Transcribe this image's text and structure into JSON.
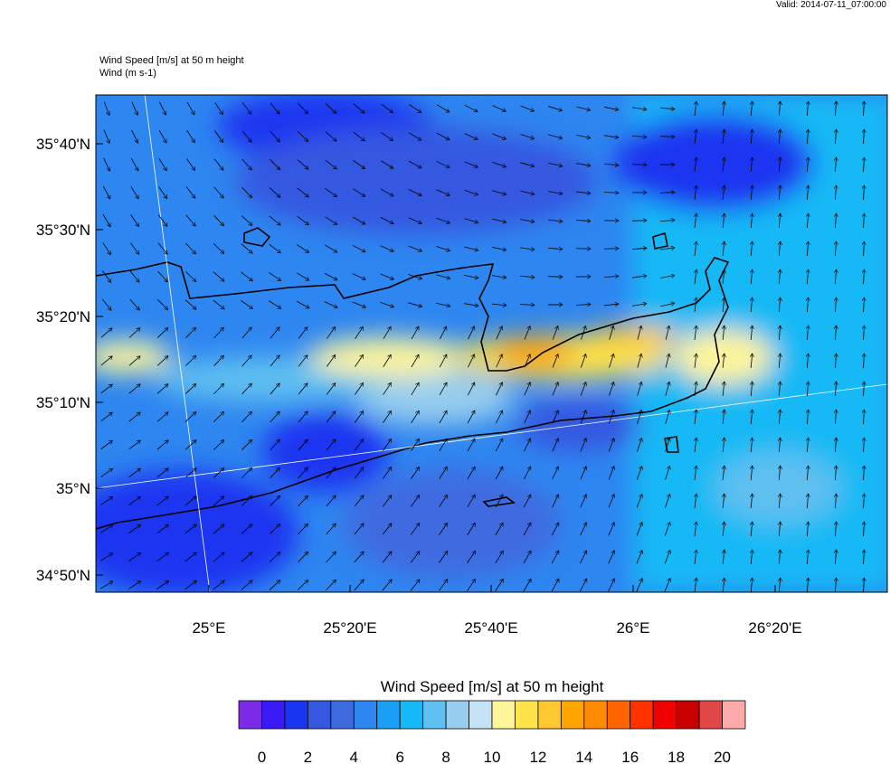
{
  "header": {
    "valid": "Valid: 2014-07-11_07:00:00",
    "field": "Wind Speed [m/s] at 50 m height",
    "vector": "Wind   (m s-1)"
  },
  "map": {
    "lat_labels": [
      "35°40'N",
      "35°30'N",
      "35°20'N",
      "35°10'N",
      "35°N",
      "34°50'N"
    ],
    "lon_labels": [
      "25°E",
      "25°20'E",
      "25°40'E",
      "26°E",
      "26°20'E"
    ]
  },
  "colorbar": {
    "title": "Wind Speed [m/s] at 50 m height",
    "colors": [
      "#7b2be8",
      "#3a1af5",
      "#1a35f0",
      "#3558e0",
      "#3f6be0",
      "#2e86f0",
      "#1aa0f5",
      "#14b9f5",
      "#5ec0f0",
      "#97cdee",
      "#c4e3f5",
      "#fff59a",
      "#ffe34a",
      "#ffc833",
      "#ffa500",
      "#ff8c00",
      "#ff6400",
      "#ff3200",
      "#f00000",
      "#c80000",
      "#e04848",
      "#ffaaaa"
    ],
    "labels": [
      0,
      2,
      4,
      6,
      8,
      10,
      12,
      14,
      16,
      18,
      20
    ]
  }
}
